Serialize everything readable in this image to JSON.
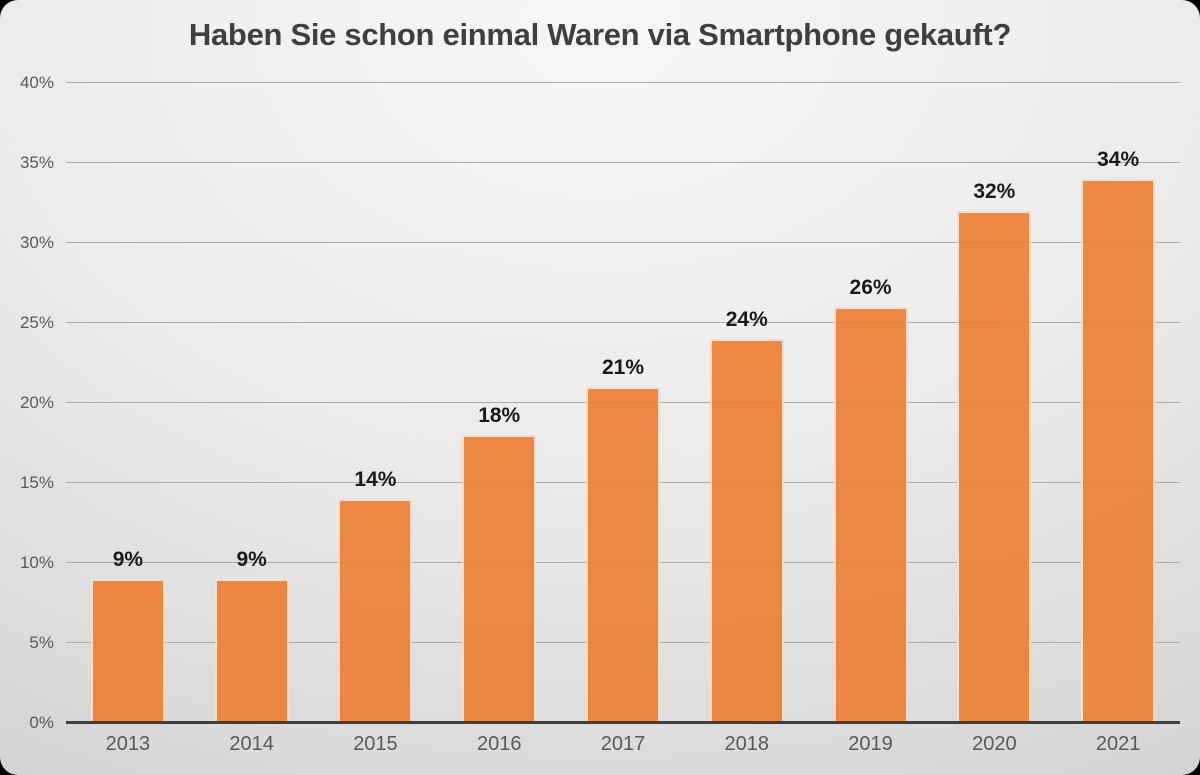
{
  "chart_data": {
    "type": "bar",
    "title": "Haben Sie schon einmal Waren via Smartphone gekauft?",
    "categories": [
      "2013",
      "2014",
      "2015",
      "2016",
      "2017",
      "2018",
      "2019",
      "2020",
      "2021"
    ],
    "values": [
      9,
      9,
      14,
      18,
      21,
      24,
      26,
      32,
      34
    ],
    "data_labels": [
      "9%",
      "9%",
      "14%",
      "18%",
      "21%",
      "24%",
      "26%",
      "32%",
      "34%"
    ],
    "xlabel": "",
    "ylabel": "",
    "ylim": [
      0,
      40
    ],
    "y_tick_step": 5,
    "y_tick_labels": [
      "0%",
      "5%",
      "10%",
      "15%",
      "20%",
      "25%",
      "30%",
      "35%",
      "40%"
    ],
    "grid": true,
    "legend": false,
    "colors": {
      "bar_fill": "rgba(237, 125, 49, 0.9)",
      "bar_border": "rgba(255, 250, 243, 0.75)",
      "gridline": "#ababab",
      "axis_line": "#3f3f3f",
      "title_text": "#3f3f3f",
      "tick_text": "#595959",
      "data_label_text": "#1a1a1a"
    }
  }
}
